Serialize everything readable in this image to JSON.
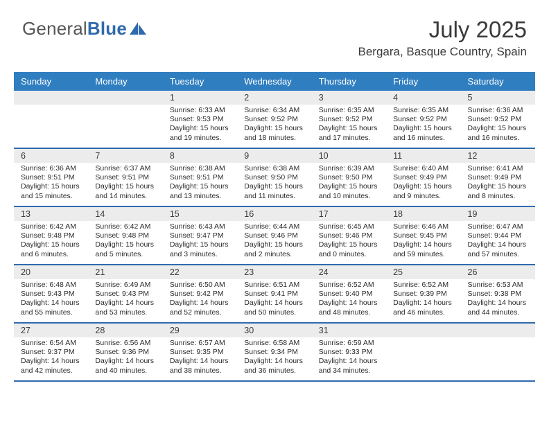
{
  "brand": {
    "part1": "General",
    "part2": "Blue"
  },
  "title": "July 2025",
  "location": "Bergara, Basque Country, Spain",
  "colors": {
    "header_bg": "#2f7ec0",
    "header_fg": "#ffffff",
    "daynum_bg": "#ececec",
    "rule": "#2f6aad",
    "text": "#3a3a3a",
    "logo_gray": "#565656",
    "logo_blue": "#2f6aad"
  },
  "weekdays": [
    "Sunday",
    "Monday",
    "Tuesday",
    "Wednesday",
    "Thursday",
    "Friday",
    "Saturday"
  ],
  "weeks": [
    [
      null,
      null,
      {
        "n": "1",
        "sunrise": "6:33 AM",
        "sunset": "9:53 PM",
        "dlh": "15",
        "dlm": "19"
      },
      {
        "n": "2",
        "sunrise": "6:34 AM",
        "sunset": "9:52 PM",
        "dlh": "15",
        "dlm": "18"
      },
      {
        "n": "3",
        "sunrise": "6:35 AM",
        "sunset": "9:52 PM",
        "dlh": "15",
        "dlm": "17"
      },
      {
        "n": "4",
        "sunrise": "6:35 AM",
        "sunset": "9:52 PM",
        "dlh": "15",
        "dlm": "16"
      },
      {
        "n": "5",
        "sunrise": "6:36 AM",
        "sunset": "9:52 PM",
        "dlh": "15",
        "dlm": "16"
      }
    ],
    [
      {
        "n": "6",
        "sunrise": "6:36 AM",
        "sunset": "9:51 PM",
        "dlh": "15",
        "dlm": "15"
      },
      {
        "n": "7",
        "sunrise": "6:37 AM",
        "sunset": "9:51 PM",
        "dlh": "15",
        "dlm": "14"
      },
      {
        "n": "8",
        "sunrise": "6:38 AM",
        "sunset": "9:51 PM",
        "dlh": "15",
        "dlm": "13"
      },
      {
        "n": "9",
        "sunrise": "6:38 AM",
        "sunset": "9:50 PM",
        "dlh": "15",
        "dlm": "11"
      },
      {
        "n": "10",
        "sunrise": "6:39 AM",
        "sunset": "9:50 PM",
        "dlh": "15",
        "dlm": "10"
      },
      {
        "n": "11",
        "sunrise": "6:40 AM",
        "sunset": "9:49 PM",
        "dlh": "15",
        "dlm": "9"
      },
      {
        "n": "12",
        "sunrise": "6:41 AM",
        "sunset": "9:49 PM",
        "dlh": "15",
        "dlm": "8"
      }
    ],
    [
      {
        "n": "13",
        "sunrise": "6:42 AM",
        "sunset": "9:48 PM",
        "dlh": "15",
        "dlm": "6"
      },
      {
        "n": "14",
        "sunrise": "6:42 AM",
        "sunset": "9:48 PM",
        "dlh": "15",
        "dlm": "5"
      },
      {
        "n": "15",
        "sunrise": "6:43 AM",
        "sunset": "9:47 PM",
        "dlh": "15",
        "dlm": "3"
      },
      {
        "n": "16",
        "sunrise": "6:44 AM",
        "sunset": "9:46 PM",
        "dlh": "15",
        "dlm": "2"
      },
      {
        "n": "17",
        "sunrise": "6:45 AM",
        "sunset": "9:46 PM",
        "dlh": "15",
        "dlm": "0"
      },
      {
        "n": "18",
        "sunrise": "6:46 AM",
        "sunset": "9:45 PM",
        "dlh": "14",
        "dlm": "59"
      },
      {
        "n": "19",
        "sunrise": "6:47 AM",
        "sunset": "9:44 PM",
        "dlh": "14",
        "dlm": "57"
      }
    ],
    [
      {
        "n": "20",
        "sunrise": "6:48 AM",
        "sunset": "9:43 PM",
        "dlh": "14",
        "dlm": "55"
      },
      {
        "n": "21",
        "sunrise": "6:49 AM",
        "sunset": "9:43 PM",
        "dlh": "14",
        "dlm": "53"
      },
      {
        "n": "22",
        "sunrise": "6:50 AM",
        "sunset": "9:42 PM",
        "dlh": "14",
        "dlm": "52"
      },
      {
        "n": "23",
        "sunrise": "6:51 AM",
        "sunset": "9:41 PM",
        "dlh": "14",
        "dlm": "50"
      },
      {
        "n": "24",
        "sunrise": "6:52 AM",
        "sunset": "9:40 PM",
        "dlh": "14",
        "dlm": "48"
      },
      {
        "n": "25",
        "sunrise": "6:52 AM",
        "sunset": "9:39 PM",
        "dlh": "14",
        "dlm": "46"
      },
      {
        "n": "26",
        "sunrise": "6:53 AM",
        "sunset": "9:38 PM",
        "dlh": "14",
        "dlm": "44"
      }
    ],
    [
      {
        "n": "27",
        "sunrise": "6:54 AM",
        "sunset": "9:37 PM",
        "dlh": "14",
        "dlm": "42"
      },
      {
        "n": "28",
        "sunrise": "6:56 AM",
        "sunset": "9:36 PM",
        "dlh": "14",
        "dlm": "40"
      },
      {
        "n": "29",
        "sunrise": "6:57 AM",
        "sunset": "9:35 PM",
        "dlh": "14",
        "dlm": "38"
      },
      {
        "n": "30",
        "sunrise": "6:58 AM",
        "sunset": "9:34 PM",
        "dlh": "14",
        "dlm": "36"
      },
      {
        "n": "31",
        "sunrise": "6:59 AM",
        "sunset": "9:33 PM",
        "dlh": "14",
        "dlm": "34"
      },
      null,
      null
    ]
  ],
  "labels": {
    "sunrise": "Sunrise:",
    "sunset": "Sunset:",
    "daylight": "Daylight:",
    "hours": "hours",
    "and": "and",
    "minutes": "minutes."
  }
}
